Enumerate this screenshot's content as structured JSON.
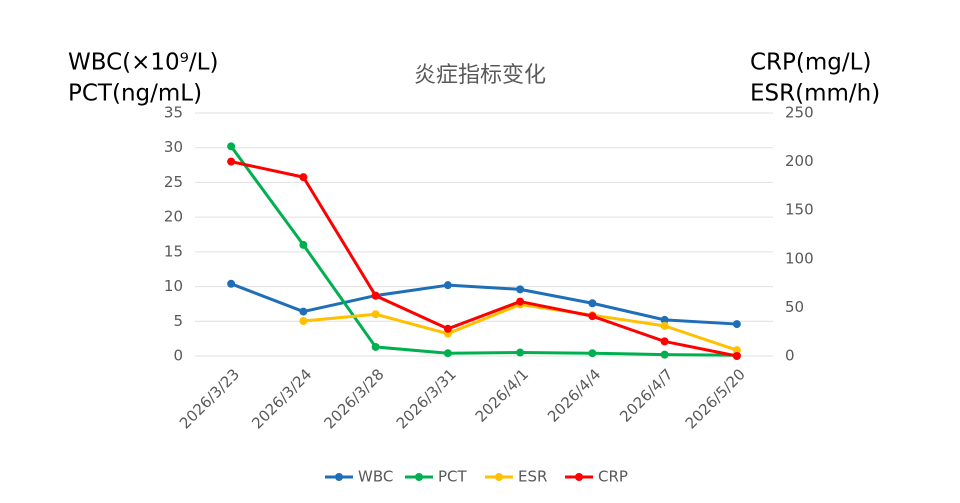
{
  "chart_data": {
    "type": "line",
    "title": "炎症指标变化",
    "ylabel": [
      "WBC(×10⁹/L)",
      "PCT(ng/mL)"
    ],
    "y2label": [
      "CRP(mg/L)",
      "ESR(mm/h)"
    ],
    "categories": [
      "2026/3/23",
      "2026/3/24",
      "2026/3/28",
      "2026/3/31",
      "2026/4/1",
      "2026/4/4",
      "2026/4/7",
      "2026/5/20"
    ],
    "series": [
      {
        "name": "WBC",
        "color": "#1f6fb8",
        "values": [
          10.4,
          6.4,
          8.7,
          10.2,
          9.6,
          7.6,
          5.2,
          4.6
        ]
      },
      {
        "name": "PCT",
        "color": "#00b050",
        "values": [
          30.2,
          16,
          1.3,
          0.4,
          0.5,
          0.4,
          0.2,
          0.1
        ]
      },
      {
        "name": "ESR",
        "color": "#ffc000",
        "axis": "y2",
        "values": [
          null,
          36,
          43,
          23,
          53,
          42,
          31,
          6
        ]
      },
      {
        "name": "CRP",
        "color": "#ff0000",
        "axis": "y2",
        "values": [
          200,
          184,
          62,
          28,
          56,
          41,
          15,
          0
        ]
      }
    ],
    "ylim": [
      0,
      35
    ],
    "yticks": [
      0,
      5,
      10,
      15,
      20,
      25,
      30,
      35
    ],
    "y2lim": [
      0,
      250
    ],
    "y2ticks": [
      0,
      50,
      100,
      150,
      200,
      250
    ],
    "grid": true,
    "legend": "bottom"
  }
}
